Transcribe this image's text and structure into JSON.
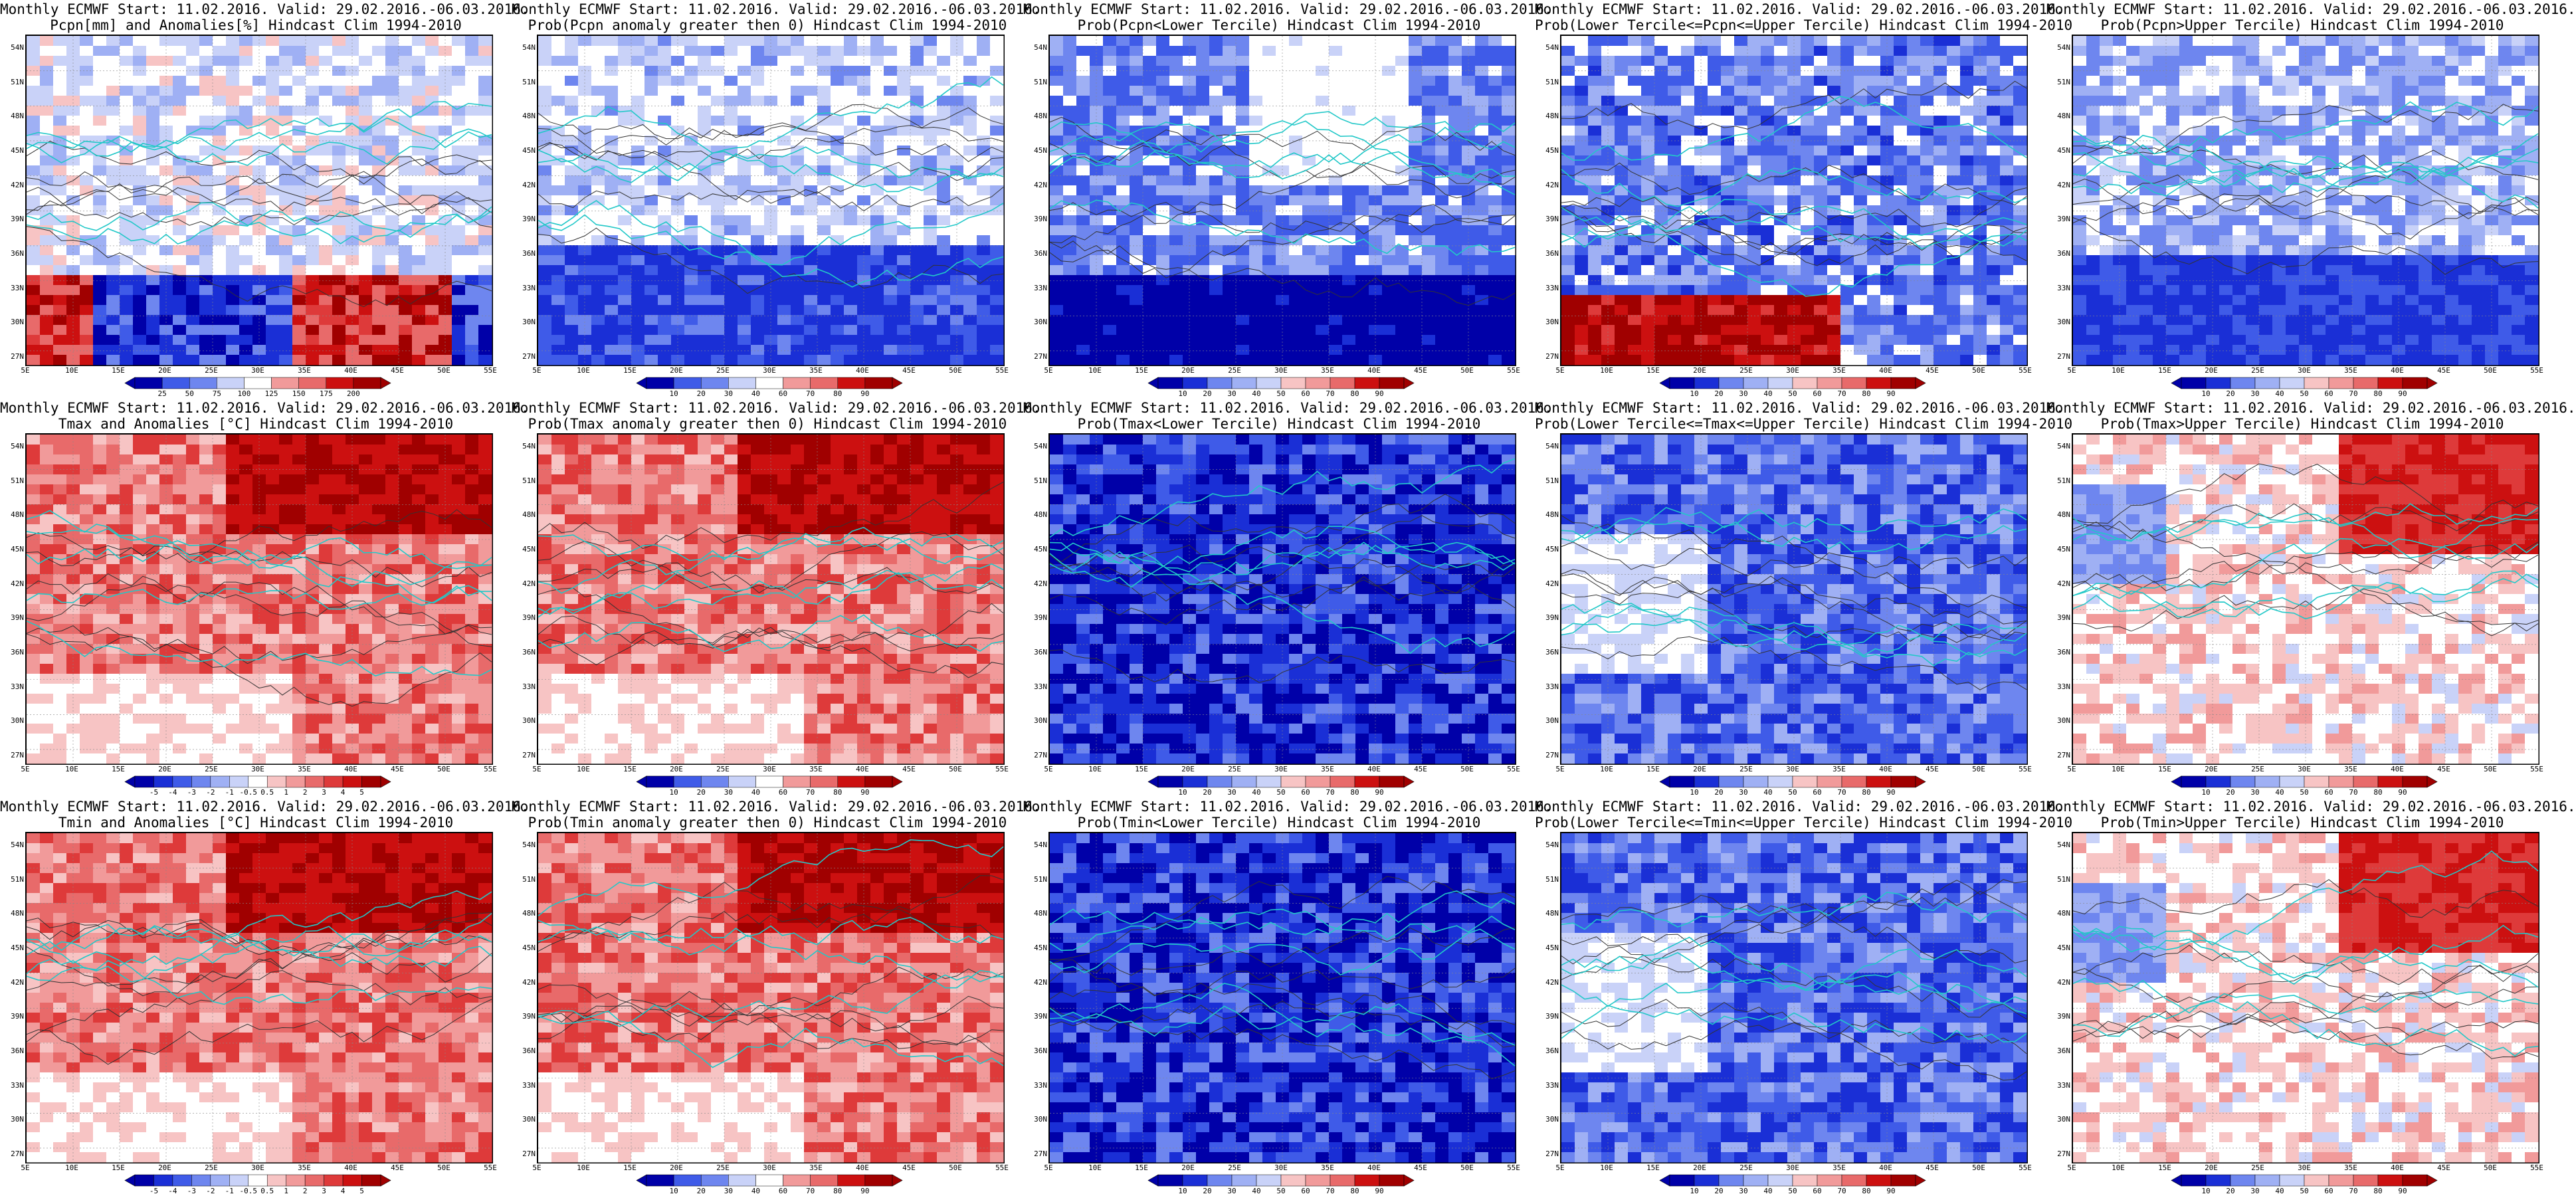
{
  "lat_labels": [
    "54N",
    "51N",
    "48N",
    "45N",
    "42N",
    "39N",
    "36N",
    "33N",
    "30N",
    "27N"
  ],
  "lon_labels": [
    "5E",
    "10E",
    "15E",
    "20E",
    "25E",
    "30E",
    "35E",
    "40E",
    "45E",
    "50E",
    "55E"
  ],
  "colors": {
    "blue_scale": [
      "#0000a8",
      "#1a2fd6",
      "#3f5be8",
      "#6e86ef",
      "#9fb0f4",
      "#c9d2f8"
    ],
    "red_scale": [
      "#f7c4c4",
      "#f19a9a",
      "#e86a6a",
      "#de3a3a",
      "#cc1010",
      "#a00000"
    ],
    "neutral": "#ffffff",
    "coast": "#22c8c8",
    "contour": "#333333"
  },
  "panels": [
    {
      "title1": "Monthly ECMWF Start: 11.02.2016. Valid: 29.02.2016.-06.03.2016.",
      "title2": "Pcpn[mm] and Anomalies[%] Hindcast Clim 1994-2010",
      "cbar": [
        "25",
        "50",
        "75",
        "100",
        "125",
        "150",
        "175",
        "200"
      ],
      "style": "pcpn_anom"
    },
    {
      "title1": "Monthly ECMWF Start: 11.02.2016. Valid: 29.02.2016.-06.03.2016.",
      "title2": "Prob(Pcpn anomaly greater then 0) Hindcast Clim 1994-2010",
      "cbar": [
        "10",
        "20",
        "30",
        "40",
        "60",
        "70",
        "80",
        "90"
      ],
      "style": "pcpn_prob"
    },
    {
      "title1": "Monthly ECMWF Start: 11.02.2016. Valid: 29.02.2016.-06.03.2016.",
      "title2": "Prob(Pcpn<Lower Tercile) Hindcast Clim 1994-2010",
      "cbar": [
        "10",
        "20",
        "30",
        "40",
        "50",
        "60",
        "70",
        "80",
        "90"
      ],
      "style": "pcpn_lower"
    },
    {
      "title1": "Monthly ECMWF Start: 11.02.2016. Valid: 29.02.2016.-06.03.2016.",
      "title2": "Prob(Lower Tercile<=Pcpn<=Upper Tercile) Hindcast Clim 1994-2010",
      "cbar": [
        "10",
        "20",
        "30",
        "40",
        "50",
        "60",
        "70",
        "80",
        "90"
      ],
      "style": "pcpn_mid"
    },
    {
      "title1": "Monthly ECMWF Start: 11.02.2016. Valid: 29.02.2016.-06.03.2016.",
      "title2": "Prob(Pcpn>Upper Tercile) Hindcast Clim 1994-2010",
      "cbar": [
        "10",
        "20",
        "30",
        "40",
        "50",
        "60",
        "70",
        "80",
        "90"
      ],
      "style": "pcpn_upper"
    },
    {
      "title1": "Monthly ECMWF Start: 11.02.2016. Valid: 29.02.2016.-06.03.2016.",
      "title2": "Tmax and Anomalies [°C] Hindcast Clim 1994-2010",
      "cbar": [
        "-5",
        "-4",
        "-3",
        "-2",
        "-1",
        "-0.5",
        "0.5",
        "1",
        "2",
        "3",
        "4",
        "5"
      ],
      "style": "warm"
    },
    {
      "title1": "Monthly ECMWF Start: 11.02.2016. Valid: 29.02.2016.-06.03.2016.",
      "title2": "Prob(Tmax anomaly greater then 0) Hindcast Clim 1994-2010",
      "cbar": [
        "10",
        "20",
        "30",
        "40",
        "60",
        "70",
        "80",
        "90"
      ],
      "style": "warm"
    },
    {
      "title1": "Monthly ECMWF Start: 11.02.2016. Valid: 29.02.2016.-06.03.2016.",
      "title2": "Prob(Tmax<Lower Tercile) Hindcast Clim 1994-2010",
      "cbar": [
        "10",
        "20",
        "30",
        "40",
        "50",
        "60",
        "70",
        "80",
        "90"
      ],
      "style": "cold"
    },
    {
      "title1": "Monthly ECMWF Start: 11.02.2016. Valid: 29.02.2016.-06.03.2016.",
      "title2": "Prob(Lower Tercile<=Tmax<=Upper Tercile) Hindcast Clim 1994-2010",
      "cbar": [
        "10",
        "20",
        "30",
        "40",
        "50",
        "60",
        "70",
        "80",
        "90"
      ],
      "style": "cold_mid"
    },
    {
      "title1": "Monthly ECMWF Start: 11.02.2016. Valid: 29.02.2016.-06.03.2016.",
      "title2": "Prob(Tmax>Upper Tercile) Hindcast Clim 1994-2010",
      "cbar": [
        "10",
        "20",
        "30",
        "40",
        "50",
        "60",
        "70",
        "80",
        "90"
      ],
      "style": "warm_light"
    },
    {
      "title1": "Monthly ECMWF Start: 11.02.2016. Valid: 29.02.2016.-06.03.2016.",
      "title2": "Tmin and Anomalies [°C] Hindcast Clim 1994-2010",
      "cbar": [
        "-5",
        "-4",
        "-3",
        "-2",
        "-1",
        "-0.5",
        "0.5",
        "1",
        "2",
        "3",
        "4",
        "5"
      ],
      "style": "warm"
    },
    {
      "title1": "Monthly ECMWF Start: 11.02.2016. Valid: 29.02.2016.-06.03.2016.",
      "title2": "Prob(Tmin anomaly greater then 0) Hindcast Clim 1994-2010",
      "cbar": [
        "10",
        "20",
        "30",
        "40",
        "60",
        "70",
        "80",
        "90"
      ],
      "style": "warm"
    },
    {
      "title1": "Monthly ECMWF Start: 11.02.2016. Valid: 29.02.2016.-06.03.2016.",
      "title2": "Prob(Tmin<Lower Tercile) Hindcast Clim 1994-2010",
      "cbar": [
        "10",
        "20",
        "30",
        "40",
        "50",
        "60",
        "70",
        "80",
        "90"
      ],
      "style": "cold"
    },
    {
      "title1": "Monthly ECMWF Start: 11.02.2016. Valid: 29.02.2016.-06.03.2016.",
      "title2": "Prob(Lower Tercile<=Tmin<=Upper Tercile) Hindcast Clim 1994-2010",
      "cbar": [
        "10",
        "20",
        "30",
        "40",
        "50",
        "60",
        "70",
        "80",
        "90"
      ],
      "style": "cold_mid"
    },
    {
      "title1": "Monthly ECMWF Start: 11.02.2016. Valid: 29.02.2016.-06.03.2016.",
      "title2": "Prob(Tmin>Upper Tercile) Hindcast Clim 1994-2010",
      "cbar": [
        "10",
        "20",
        "30",
        "40",
        "50",
        "60",
        "70",
        "80",
        "90"
      ],
      "style": "warm_light"
    }
  ]
}
